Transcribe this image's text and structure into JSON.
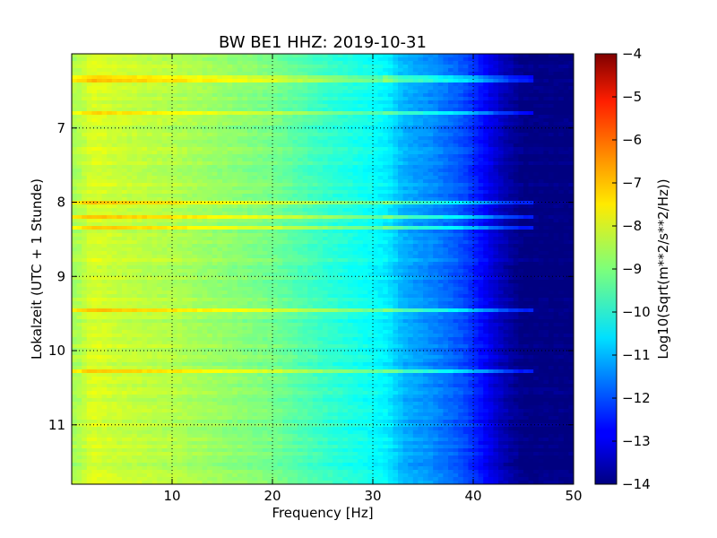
{
  "chart_data": {
    "type": "heatmap",
    "title": "BW BE1 HHZ: 2019-10-31",
    "xlabel": "Frequency [Hz]",
    "ylabel": "Lokalzeit (UTC + 1 Stunde)",
    "colorbar_label": "Log10(Sqrt(m**2/s**2/Hz))",
    "colormap": "jet",
    "grid": true,
    "xlim": [
      0,
      50
    ],
    "ylim_hours": [
      6.0,
      11.8
    ],
    "y_inverted": true,
    "clim": [
      -14,
      -4
    ],
    "x_ticks": [
      10,
      20,
      30,
      40,
      50
    ],
    "y_ticks": [
      7,
      8,
      9,
      10,
      11
    ],
    "colorbar_ticks": [
      -4,
      -5,
      -6,
      -7,
      -8,
      -9,
      -10,
      -11,
      -12,
      -13,
      -14
    ],
    "spectrum_profile": [
      {
        "freq": 0.5,
        "value": -8.6
      },
      {
        "freq": 2,
        "value": -8.1
      },
      {
        "freq": 5,
        "value": -8.3
      },
      {
        "freq": 10,
        "value": -8.5
      },
      {
        "freq": 15,
        "value": -8.8
      },
      {
        "freq": 20,
        "value": -9.1
      },
      {
        "freq": 25,
        "value": -9.7
      },
      {
        "freq": 30,
        "value": -10.2
      },
      {
        "freq": 31.5,
        "value": -10.4
      },
      {
        "freq": 33,
        "value": -11.0
      },
      {
        "freq": 36,
        "value": -11.4
      },
      {
        "freq": 39,
        "value": -12.0
      },
      {
        "freq": 41,
        "value": -12.7
      },
      {
        "freq": 43,
        "value": -13.5
      },
      {
        "freq": 45,
        "value": -14.0
      },
      {
        "freq": 50,
        "value": -14.0
      }
    ],
    "bright_bands_hours": [
      6.35,
      6.8,
      8.0,
      8.2,
      8.35,
      9.45,
      10.28
    ],
    "band_level_boost": 1.0
  }
}
